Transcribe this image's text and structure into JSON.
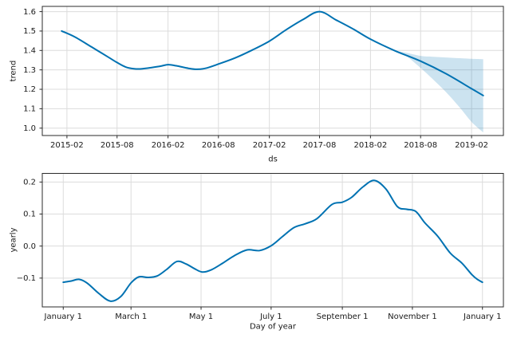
{
  "figure": {
    "line_color": "#0072B2",
    "band_opacity": 0.2,
    "grid_color": "#dcdcdc",
    "spine_color": "#2b2b2b",
    "text_color": "#1a1a1a",
    "background": "#ffffff"
  },
  "chart_data": [
    {
      "type": "line",
      "name": "trend",
      "title": "",
      "xlabel": "ds",
      "ylabel": "trend",
      "x_unit": "days since 2015-01-01",
      "xlim": [
        -58,
        1607
      ],
      "ylim": [
        0.962,
        1.627
      ],
      "grid": true,
      "legend": "none",
      "x_ticks": [
        {
          "pos": 31,
          "label": "2015-02"
        },
        {
          "pos": 212,
          "label": "2015-08"
        },
        {
          "pos": 396,
          "label": "2016-02"
        },
        {
          "pos": 578,
          "label": "2016-08"
        },
        {
          "pos": 762,
          "label": "2017-02"
        },
        {
          "pos": 943,
          "label": "2017-08"
        },
        {
          "pos": 1127,
          "label": "2018-02"
        },
        {
          "pos": 1308,
          "label": "2018-08"
        },
        {
          "pos": 1492,
          "label": "2019-02"
        }
      ],
      "y_ticks": [
        {
          "pos": 1.0,
          "label": "1.0"
        },
        {
          "pos": 1.1,
          "label": "1.1"
        },
        {
          "pos": 1.2,
          "label": "1.2"
        },
        {
          "pos": 1.3,
          "label": "1.3"
        },
        {
          "pos": 1.4,
          "label": "1.4"
        },
        {
          "pos": 1.5,
          "label": "1.5"
        },
        {
          "pos": 1.6,
          "label": "1.6"
        }
      ],
      "series": [
        {
          "name": "trend",
          "x": [
            12,
            59,
            120,
            181,
            212,
            243,
            273,
            304,
            365,
            396,
            426,
            470,
            500,
            531,
            578,
            639,
            700,
            762,
            821,
            882,
            943,
            1004,
            1065,
            1127,
            1216,
            1308,
            1400,
            1492,
            1534
          ],
          "y": [
            1.5,
            1.47,
            1.418,
            1.365,
            1.338,
            1.315,
            1.306,
            1.306,
            1.318,
            1.327,
            1.321,
            1.308,
            1.303,
            1.308,
            1.33,
            1.362,
            1.402,
            1.448,
            1.505,
            1.558,
            1.6,
            1.556,
            1.51,
            1.458,
            1.398,
            1.345,
            1.28,
            1.203,
            1.168
          ]
        }
      ],
      "band": {
        "name": "uncertainty-interval",
        "x": [
          1216,
          1250,
          1308,
          1350,
          1400,
          1450,
          1492,
          1534
        ],
        "upper": [
          1.398,
          1.39,
          1.372,
          1.368,
          1.364,
          1.36,
          1.357,
          1.355
        ],
        "lower": [
          1.398,
          1.378,
          1.31,
          1.255,
          1.185,
          1.105,
          1.032,
          0.978
        ]
      }
    },
    {
      "type": "line",
      "name": "yearly",
      "title": "",
      "xlabel": "Day of year",
      "ylabel": "yearly",
      "x_unit": "day of year",
      "xlim": [
        -17.25,
        384.25
      ],
      "ylim": [
        -0.19,
        0.227
      ],
      "grid": true,
      "legend": "none",
      "x_ticks": [
        {
          "pos": 1,
          "label": "January 1"
        },
        {
          "pos": 60,
          "label": "March 1"
        },
        {
          "pos": 121,
          "label": "May 1"
        },
        {
          "pos": 182,
          "label": "July 1"
        },
        {
          "pos": 244,
          "label": "September 1"
        },
        {
          "pos": 305,
          "label": "November 1"
        },
        {
          "pos": 366,
          "label": "January 1"
        }
      ],
      "y_ticks": [
        {
          "pos": -0.1,
          "label": "−0.1"
        },
        {
          "pos": 0.0,
          "label": "0.0"
        },
        {
          "pos": 0.1,
          "label": "0.1"
        },
        {
          "pos": 0.2,
          "label": "0.2"
        }
      ],
      "series": [
        {
          "name": "yearly",
          "x": [
            1,
            8,
            15,
            22,
            32,
            42,
            51,
            60,
            67,
            75,
            83,
            91,
            100,
            108,
            115,
            122,
            130,
            140,
            150,
            161,
            172,
            182,
            192,
            202,
            212,
            222,
            235,
            244,
            252,
            262,
            272,
            282,
            292,
            300,
            308,
            316,
            327,
            338,
            348,
            357,
            362,
            366
          ],
          "y": [
            -0.113,
            -0.109,
            -0.104,
            -0.116,
            -0.148,
            -0.172,
            -0.158,
            -0.115,
            -0.096,
            -0.098,
            -0.093,
            -0.073,
            -0.048,
            -0.056,
            -0.07,
            -0.081,
            -0.074,
            -0.053,
            -0.03,
            -0.012,
            -0.014,
            0.001,
            0.03,
            0.058,
            0.07,
            0.086,
            0.13,
            0.137,
            0.152,
            0.185,
            0.205,
            0.178,
            0.123,
            0.115,
            0.108,
            0.072,
            0.031,
            -0.022,
            -0.053,
            -0.09,
            -0.105,
            -0.113
          ]
        }
      ]
    }
  ]
}
